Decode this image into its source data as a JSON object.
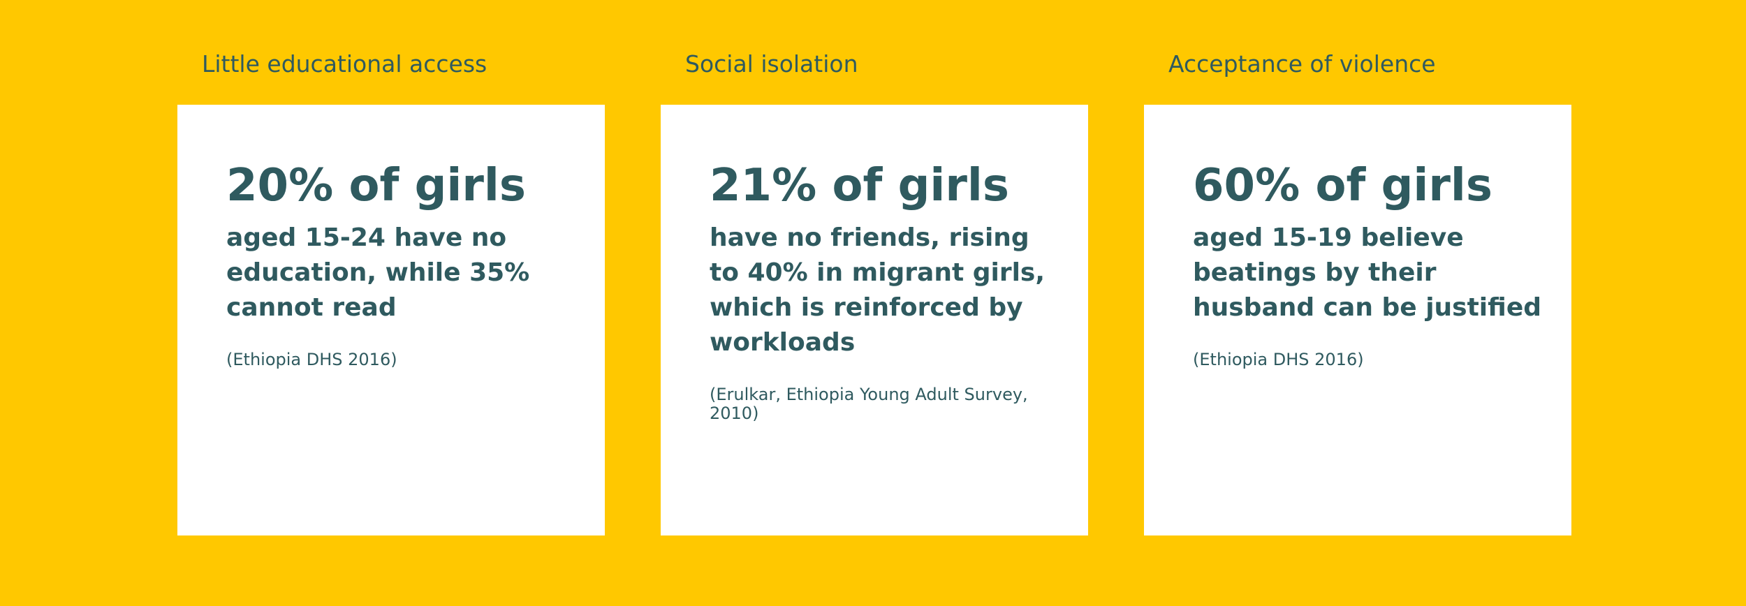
{
  "colors": {
    "background": "#FFC800",
    "card": "#FFFFFF",
    "text": "#2F5A5F"
  },
  "cards": [
    {
      "heading": "Little educational access",
      "stat": "20% of girls",
      "description": "aged 15-24 have no education, while 35% cannot read",
      "source": "(Ethiopia DHS 2016)"
    },
    {
      "heading": "Social isolation",
      "stat": "21% of girls",
      "description": "have no friends, rising to 40% in migrant girls, which is reinforced by workloads",
      "source": "(Erulkar, Ethiopia Young Adult Survey, 2010)"
    },
    {
      "heading": "Acceptance of violence",
      "stat": "60% of girls",
      "description": "aged 15-19 believe beatings by their husband can be justified",
      "source": "(Ethiopia DHS 2016)"
    }
  ]
}
